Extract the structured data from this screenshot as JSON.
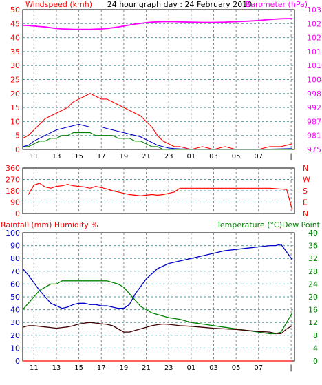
{
  "header": {
    "left": "Windspeed (kmh)",
    "center": "24 hour graph day : 24 February 2010",
    "right": "Barometer (hPa)"
  },
  "bottom_header": {
    "left": "Rainfall (mm)  Humidity %",
    "right": "Temperature (°C)Dew Point"
  },
  "x_ticks": [
    "11",
    "13",
    "15",
    "17",
    "19",
    "21",
    "23",
    "01",
    "03",
    "05",
    "07",
    "|"
  ],
  "colors": {
    "wind_speed": "#ff0000",
    "wind_gust_green": "#008000",
    "wind_avg_blue": "#0000c8",
    "barometer": "#ff00ff",
    "wind_dir": "#ff0000",
    "humidity": "#0000c8",
    "temperature": "#008000",
    "dew_point": "#400000",
    "rainfall": "#ff0000",
    "grid_h": "#40a0a0",
    "grid_v": "#888888",
    "right_axis_temp": "#008000",
    "right_axis_baro": "#ff00ff",
    "right_axis_dir": "#ff0000"
  },
  "chart_data": [
    {
      "type": "line",
      "name": "wind-barometer",
      "x_hours": [
        10,
        10.5,
        11,
        11.5,
        12,
        12.5,
        13,
        13.5,
        14,
        14.5,
        15,
        15.5,
        16,
        16.5,
        17,
        17.5,
        18,
        18.5,
        19,
        19.5,
        20,
        20.5,
        21,
        21.5,
        22,
        22.5,
        23,
        23.5,
        24,
        25,
        26,
        27,
        28,
        29,
        30,
        31,
        32,
        33,
        34
      ],
      "ylim_left": [
        0,
        50
      ],
      "yticks_left": [
        "0",
        "5",
        "10",
        "15",
        "20",
        "25",
        "30",
        "35",
        "40",
        "45",
        "50"
      ],
      "ylim_right": [
        975,
        1033
      ],
      "yticks_right": [
        "975",
        "981",
        "987",
        "992",
        "998",
        "1004",
        "1010",
        "1015",
        "1021",
        "1027",
        "1033"
      ],
      "series": [
        {
          "key": "wind_speed",
          "values": [
            4,
            5,
            7,
            9,
            11,
            12,
            13,
            14,
            15,
            17,
            18,
            19,
            20,
            19,
            18,
            18,
            17,
            16,
            15,
            14,
            13,
            12,
            10,
            8,
            5,
            3,
            2,
            1,
            1,
            0,
            1,
            0,
            1,
            0,
            0,
            0,
            1,
            1,
            2
          ]
        },
        {
          "key": "wind_gust_green",
          "values": [
            1,
            1,
            2,
            3,
            3,
            4,
            4,
            5,
            5,
            6,
            6,
            6,
            6,
            5,
            5,
            5,
            5,
            4,
            4,
            4,
            3,
            3,
            2,
            1,
            1,
            0,
            0,
            0,
            0,
            0,
            0,
            0,
            0,
            0,
            0,
            0,
            0,
            0,
            0
          ]
        },
        {
          "key": "wind_avg_blue",
          "values": [
            1,
            1.5,
            3,
            4,
            5,
            6,
            7,
            7.5,
            8,
            8.5,
            9,
            8.5,
            8,
            8,
            8,
            7.5,
            7,
            6.5,
            6,
            5.5,
            5,
            4.5,
            3.5,
            2.5,
            1.5,
            1,
            0.5,
            0.3,
            0.2,
            0.1,
            0.1,
            0.1,
            0.1,
            0.1,
            0.1,
            0.1,
            0.1,
            0.2,
            0.3
          ]
        },
        {
          "key": "barometer",
          "values": [
            1026.5,
            1026.4,
            1026.2,
            1026,
            1025.8,
            1025.5,
            1025.2,
            1025,
            1024.9,
            1024.8,
            1024.8,
            1024.8,
            1024.8,
            1024.9,
            1025,
            1025.2,
            1025.5,
            1025.8,
            1026.2,
            1026.6,
            1027,
            1027.3,
            1027.6,
            1027.8,
            1027.9,
            1028,
            1028,
            1028,
            1027.9,
            1027.8,
            1027.7,
            1027.7,
            1027.8,
            1028,
            1028.2,
            1028.5,
            1028.9,
            1029.2,
            1029.3
          ]
        }
      ]
    },
    {
      "type": "line",
      "name": "wind-direction",
      "x_hours": [
        10,
        10.5,
        11,
        11.5,
        12,
        12.5,
        13,
        13.5,
        14,
        14.5,
        15,
        15.5,
        16,
        16.5,
        17,
        17.5,
        18,
        18.5,
        19,
        19.5,
        20,
        20.5,
        21,
        21.5,
        22,
        22.5,
        23,
        23.5,
        24,
        26,
        28,
        30,
        32,
        33.5,
        34
      ],
      "ylim_left": [
        0,
        360
      ],
      "yticks_left": [
        "0",
        "90",
        "180",
        "270",
        "360"
      ],
      "yticks_right": [
        "N",
        "E",
        "S",
        "W",
        "N"
      ],
      "series": [
        {
          "key": "wind_dir",
          "values": [
            null,
            150,
            225,
            240,
            210,
            200,
            215,
            220,
            230,
            220,
            215,
            210,
            200,
            215,
            205,
            195,
            180,
            170,
            160,
            150,
            145,
            140,
            145,
            150,
            145,
            150,
            160,
            170,
            200,
            200,
            200,
            200,
            200,
            190,
            30
          ]
        }
      ]
    },
    {
      "type": "line",
      "name": "humidity-temperature",
      "x_hours": [
        10,
        10.5,
        11,
        11.5,
        12,
        12.5,
        13,
        13.5,
        14,
        14.5,
        15,
        15.5,
        16,
        16.5,
        17,
        17.5,
        18,
        18.5,
        19,
        19.5,
        20,
        20.5,
        21,
        21.5,
        22,
        22.5,
        23,
        24,
        25,
        26,
        27,
        28,
        29,
        30,
        31,
        32,
        32.5,
        33,
        33.5,
        34
      ],
      "ylim_left": [
        0,
        100
      ],
      "yticks_left": [
        "0",
        "10",
        "20",
        "30",
        "40",
        "50",
        "60",
        "70",
        "80",
        "90",
        "100"
      ],
      "ylim_right": [
        0,
        40
      ],
      "yticks_right": [
        "0",
        "4",
        "8",
        "12",
        "16",
        "20",
        "24",
        "28",
        "32",
        "36",
        "40"
      ],
      "series": [
        {
          "key": "humidity",
          "axis": "left",
          "values": [
            72,
            67,
            61,
            55,
            50,
            45,
            43,
            41,
            42,
            44,
            45,
            45,
            44,
            44,
            43,
            43,
            42,
            41,
            41,
            44,
            52,
            58,
            64,
            68,
            72,
            74,
            76,
            78,
            80,
            82,
            84,
            86,
            87,
            88,
            89,
            90,
            90,
            91,
            85,
            79
          ]
        },
        {
          "key": "temperature",
          "axis": "right",
          "values": [
            16,
            18,
            20,
            22,
            23,
            24,
            24,
            25,
            25,
            25,
            25,
            25,
            25,
            25,
            25,
            25,
            24.5,
            24,
            23,
            21,
            19,
            17,
            16,
            15,
            14.5,
            14,
            13.5,
            13,
            12,
            11.5,
            11,
            10.5,
            10,
            9.5,
            9,
            8.5,
            8.5,
            9,
            12,
            15
          ]
        },
        {
          "key": "dew_point",
          "axis": "right",
          "values": [
            10.5,
            11,
            11,
            10.8,
            10.6,
            10.4,
            10.2,
            10.4,
            10.6,
            11,
            11.5,
            11.8,
            12,
            11.8,
            11.6,
            11.4,
            11,
            10,
            9,
            9,
            9.5,
            10,
            10.5,
            11,
            11.3,
            11.5,
            11.4,
            11,
            10.8,
            10.5,
            10.2,
            10,
            9.8,
            9.5,
            9.2,
            9,
            8.6,
            8.5,
            10,
            11
          ]
        },
        {
          "key": "rainfall",
          "axis": "left",
          "values": [
            0,
            0,
            0,
            0,
            0,
            0,
            0,
            0,
            0,
            0,
            0,
            0,
            0,
            0,
            0,
            0,
            0,
            0,
            0,
            0,
            0,
            0,
            0,
            0,
            0,
            0,
            0,
            0,
            0,
            0,
            0,
            0,
            0,
            0,
            0,
            0,
            0,
            0,
            0,
            0
          ]
        }
      ]
    }
  ]
}
